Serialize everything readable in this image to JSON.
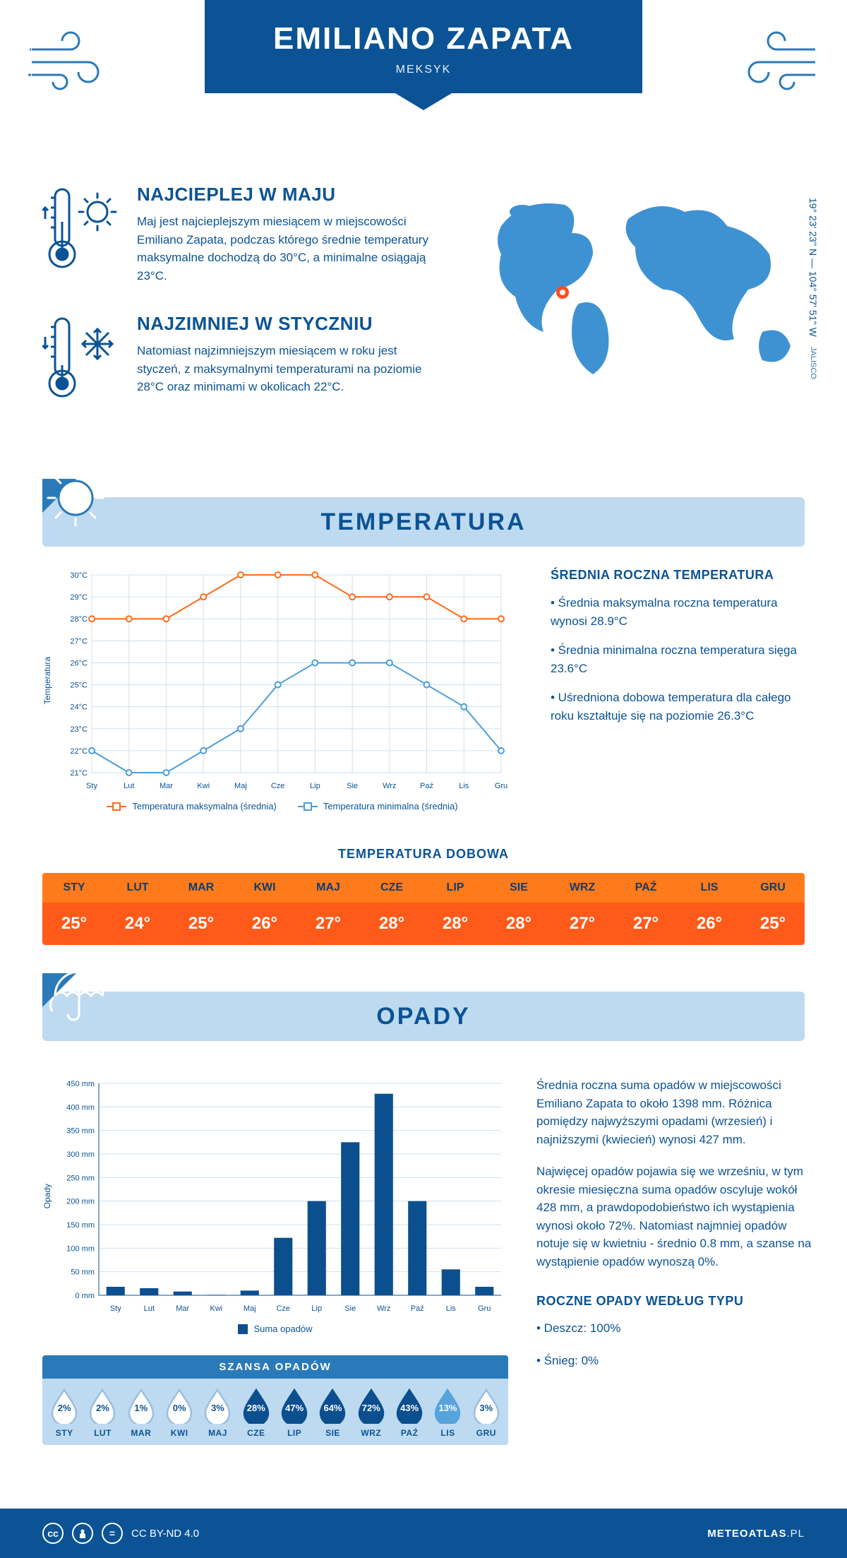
{
  "header": {
    "title": "EMILIANO ZAPATA",
    "subtitle": "MEKSYK"
  },
  "coords": {
    "lat": "19° 23' 23'' N — 104° 57' 51'' W",
    "region": "JALISCO"
  },
  "months_short": [
    "Sty",
    "Lut",
    "Mar",
    "Kwi",
    "Maj",
    "Cze",
    "Lip",
    "Sie",
    "Wrz",
    "Paź",
    "Lis",
    "Gru"
  ],
  "months_upper": [
    "STY",
    "LUT",
    "MAR",
    "KWI",
    "MAJ",
    "CZE",
    "LIP",
    "SIE",
    "WRZ",
    "PAŹ",
    "LIS",
    "GRU"
  ],
  "warm": {
    "title": "NAJCIEPLEJ W MAJU",
    "body": "Maj jest najcieplejszym miesiącem w miejscowości Emiliano Zapata, podczas którego średnie temperatury maksymalne dochodzą do 30°C, a minimalne osiągają 23°C."
  },
  "cold": {
    "title": "NAJZIMNIEJ W STYCZNIU",
    "body": "Natomiast najzimniejszym miesiącem w roku jest styczeń, z maksymalnymi temperaturami na poziomie 28°C oraz minimami w okolicach 22°C."
  },
  "temp_section_title": "TEMPERATURA",
  "temp_chart": {
    "y_label": "Temperatura",
    "ylim": [
      21,
      30
    ],
    "ytick_step": 1,
    "y_suffix": "°C",
    "max_color": "#ff6a1a",
    "min_color": "#4a9ed8",
    "grid_color": "#cfe0ef",
    "point_radius": 4,
    "line_width": 2,
    "series": {
      "max": {
        "label": "Temperatura maksymalna (średnia)",
        "values": [
          28,
          28,
          28,
          29,
          30,
          30,
          30,
          29,
          29,
          29,
          28,
          28
        ]
      },
      "min": {
        "label": "Temperatura minimalna (średnia)",
        "values": [
          22,
          21,
          21,
          22,
          23,
          25,
          26,
          26,
          26,
          25,
          24,
          22
        ]
      }
    }
  },
  "temp_info": {
    "title": "ŚREDNIA ROCZNA TEMPERATURA",
    "b1": "• Średnia maksymalna roczna temperatura wynosi 28.9°C",
    "b2": "• Średnia minimalna roczna temperatura sięga 23.6°C",
    "b3": "• Uśredniona dobowa temperatura dla całego roku kształtuje się na poziomie 26.3°C"
  },
  "daily_title": "TEMPERATURA DOBOWA",
  "daily_values": [
    "25°",
    "24°",
    "25°",
    "26°",
    "27°",
    "28°",
    "28°",
    "28°",
    "27°",
    "27°",
    "26°",
    "25°"
  ],
  "daily_colors": {
    "header_bg": "#ff7a1a",
    "header_fg": "#0b3e73",
    "value_bg": "#ff5a1a",
    "value_fg": "#ffffff"
  },
  "rain_section_title": "OPADY",
  "rain_chart": {
    "y_label": "Opady",
    "ylim": [
      0,
      450
    ],
    "ytick_step": 50,
    "y_suffix": " mm",
    "bar_color": "#0b4f8f",
    "grid_color": "#cfe0ef",
    "bar_width": 0.55,
    "values": [
      18,
      15,
      8,
      1,
      10,
      122,
      200,
      325,
      428,
      200,
      55,
      18
    ],
    "legend": "Suma opadów"
  },
  "rain_info": {
    "p1": "Średnia roczna suma opadów w miejscowości Emiliano Zapata to około 1398 mm. Różnica pomiędzy najwyższymi opadami (wrzesień) i najniższymi (kwiecień) wynosi 427 mm.",
    "p2": "Najwięcej opadów pojawia się we wrześniu, w tym okresie miesięczna suma opadów oscyluje wokół 428 mm, a prawdopodobieństwo ich wystąpienia wynosi około 72%. Natomiast najmniej opadów notuje się w kwietniu - średnio 0.8 mm, a szanse na wystąpienie opadów wynoszą 0%."
  },
  "chance": {
    "title": "SZANSA OPADÓW",
    "values": [
      2,
      2,
      1,
      0,
      3,
      28,
      47,
      64,
      72,
      43,
      13,
      3
    ],
    "colors": {
      "empty_stroke": "#9abfe0",
      "low_fill": "#57a3db",
      "high_fill": "#0b4f8f"
    }
  },
  "rain_type": {
    "title": "ROCZNE OPADY WEDŁUG TYPU",
    "l1": "• Deszcz: 100%",
    "l2": "• Śnieg: 0%"
  },
  "footer": {
    "license": "CC BY-ND 4.0",
    "site": "METEOATLAS",
    "site_suffix": ".PL"
  }
}
